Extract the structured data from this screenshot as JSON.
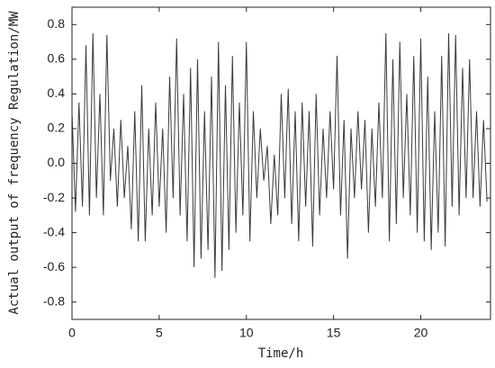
{
  "chart_data": {
    "type": "line",
    "xlabel": "Time/h",
    "ylabel": "Actual output of frequency Regulation/MW",
    "x": [
      0,
      0.2,
      0.4,
      0.6,
      0.8,
      1,
      1.2,
      1.4,
      1.6,
      1.8,
      2,
      2.2,
      2.4,
      2.6,
      2.8,
      3,
      3.2,
      3.4,
      3.6,
      3.8,
      4,
      4.2,
      4.4,
      4.6,
      4.8,
      5,
      5.2,
      5.4,
      5.6,
      5.8,
      6,
      6.2,
      6.4,
      6.6,
      6.8,
      7,
      7.2,
      7.4,
      7.6,
      7.8,
      8,
      8.2,
      8.4,
      8.6,
      8.8,
      9,
      9.2,
      9.4,
      9.6,
      9.8,
      10,
      10.2,
      10.4,
      10.6,
      10.8,
      11,
      11.2,
      11.4,
      11.6,
      11.8,
      12,
      12.2,
      12.4,
      12.6,
      12.8,
      13,
      13.2,
      13.4,
      13.6,
      13.8,
      14,
      14.2,
      14.4,
      14.6,
      14.8,
      15,
      15.2,
      15.4,
      15.6,
      15.8,
      16,
      16.2,
      16.4,
      16.6,
      16.8,
      17,
      17.2,
      17.4,
      17.6,
      17.8,
      18,
      18.2,
      18.4,
      18.6,
      18.8,
      19,
      19.2,
      19.4,
      19.6,
      19.8,
      20,
      20.2,
      20.4,
      20.6,
      20.8,
      21,
      21.2,
      21.4,
      21.6,
      21.8,
      22,
      22.2,
      22.4,
      22.6,
      22.8,
      23,
      23.2,
      23.4,
      23.6,
      23.8
    ],
    "series": [
      {
        "name": "Regulation",
        "color": "#3a3a3a",
        "values": [
          0.3,
          -0.28,
          0.35,
          -0.25,
          0.68,
          -0.3,
          0.75,
          -0.2,
          0.4,
          -0.3,
          0.74,
          -0.1,
          0.2,
          -0.25,
          0.25,
          -0.2,
          0.1,
          -0.38,
          0.3,
          -0.45,
          0.45,
          -0.45,
          0.2,
          -0.3,
          0.35,
          -0.25,
          0.2,
          -0.4,
          0.5,
          -0.2,
          0.72,
          -0.3,
          0.4,
          -0.45,
          0.55,
          -0.6,
          0.6,
          -0.55,
          0.3,
          -0.5,
          0.5,
          -0.66,
          0.7,
          -0.62,
          0.45,
          -0.5,
          0.62,
          -0.4,
          0.35,
          -0.3,
          0.7,
          -0.45,
          0.3,
          -0.2,
          0.2,
          -0.1,
          0.1,
          -0.35,
          0.05,
          -0.3,
          0.4,
          -0.2,
          0.43,
          -0.35,
          0.3,
          -0.45,
          0.35,
          -0.25,
          0.3,
          -0.48,
          0.4,
          -0.3,
          0.2,
          -0.2,
          0.3,
          -0.15,
          0.62,
          -0.3,
          0.25,
          -0.55,
          0.2,
          -0.2,
          0.3,
          -0.15,
          0.25,
          -0.4,
          0.2,
          -0.25,
          0.35,
          -0.2,
          0.75,
          -0.45,
          0.6,
          -0.35,
          0.7,
          -0.2,
          0.4,
          -0.3,
          0.62,
          -0.4,
          0.72,
          -0.45,
          0.5,
          -0.5,
          0.3,
          -0.4,
          0.62,
          -0.48,
          0.75,
          -0.25,
          0.74,
          -0.3,
          0.55,
          -0.2,
          0.6,
          -0.2,
          0.3,
          -0.25,
          0.25,
          -0.22
        ]
      }
    ],
    "xlim": [
      0,
      24
    ],
    "xticks": [
      0,
      5,
      10,
      15,
      20
    ],
    "ylim": [
      -0.9,
      0.9
    ],
    "yticks": [
      -0.8,
      -0.6,
      -0.4,
      -0.2,
      {
        "value": 0,
        "label": "0.0"
      },
      0.2,
      0.4,
      0.6,
      0.8
    ],
    "grid": false
  }
}
